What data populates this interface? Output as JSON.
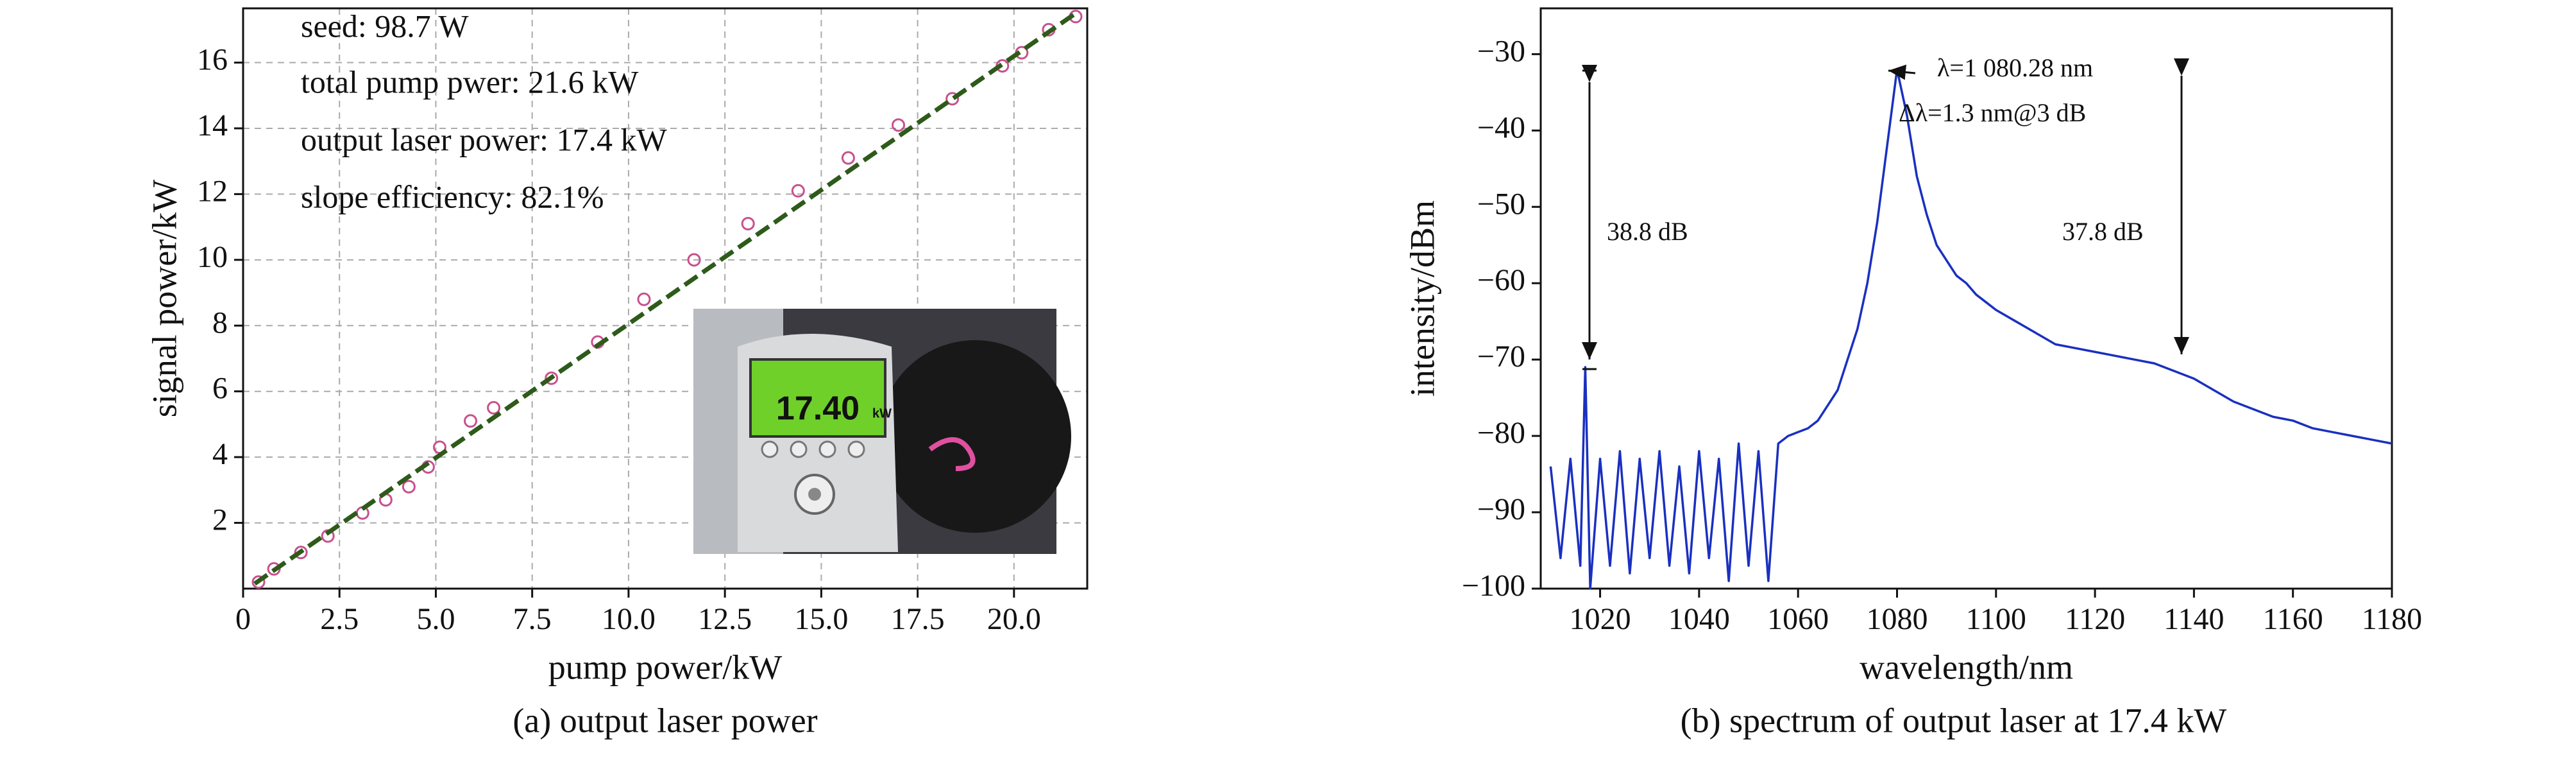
{
  "chart_data": [
    {
      "type": "scatter",
      "xlabel": "pump power/kW",
      "ylabel": "signal power/kW",
      "caption": "(a) output laser power",
      "annotations": [
        "seed: 98.7 W",
        "total pump pwer: 21.6 kW",
        "output laser power: 17.4 kW",
        "slope efficiency: 82.1%"
      ],
      "inset": {
        "display": "17.40",
        "unit": "kW"
      },
      "xlim": [
        0,
        21.9
      ],
      "ylim": [
        0,
        17.65
      ],
      "grid": true,
      "xticks": [
        0,
        2.5,
        {
          "value": 5,
          "label": "5.0"
        },
        7.5,
        {
          "value": 10,
          "label": "10.0"
        },
        12.5,
        {
          "value": 15,
          "label": "15.0"
        },
        17.5,
        {
          "value": 20,
          "label": "20.0"
        }
      ],
      "yticks": [
        2,
        4,
        6,
        8,
        10,
        12,
        14,
        16
      ],
      "series": [
        {
          "color": "#c8508c",
          "marker": "circle",
          "x": [
            0.4,
            0.8,
            1.5,
            2.2,
            3.1,
            3.7,
            4.3,
            4.8,
            5.1,
            5.9,
            6.5,
            8.0,
            9.2,
            10.4,
            11.7,
            13.1,
            14.4,
            15.7,
            17.0,
            18.4,
            19.7,
            20.2,
            20.9,
            21.6
          ],
          "values": [
            0.2,
            0.6,
            1.1,
            1.6,
            2.3,
            2.7,
            3.1,
            3.7,
            4.3,
            5.1,
            5.5,
            6.4,
            7.5,
            8.8,
            10.0,
            11.1,
            12.1,
            13.1,
            14.1,
            14.9,
            15.9,
            16.3,
            17.0,
            17.4
          ]
        },
        {
          "color": "#2e5a1a",
          "linestyle": "dashed",
          "x": [
            0.3,
            21.6
          ],
          "values": [
            0.15,
            17.5
          ]
        }
      ]
    },
    {
      "type": "line",
      "xlabel": "wavelength/nm",
      "ylabel": "intensity/dBm",
      "caption": "(b) spectrum of output laser at 17.4 kW",
      "annotations": [
        "λ=1 080.28 nm",
        "Δλ=1.3 nm@3 dB",
        "38.8 dB",
        "37.8 dB"
      ],
      "xlim": [
        1008,
        1180
      ],
      "ylim": [
        -100,
        -24
      ],
      "grid": false,
      "xticks": [
        1020,
        1040,
        1060,
        1080,
        1100,
        1120,
        1140,
        1160,
        1180
      ],
      "yticks": [
        {
          "value": -100,
          "label": "−100"
        },
        {
          "value": -90,
          "label": "−90"
        },
        {
          "value": -80,
          "label": "−80"
        },
        {
          "value": -70,
          "label": "−70"
        },
        {
          "value": -60,
          "label": "−60"
        },
        {
          "value": -50,
          "label": "−50"
        },
        {
          "value": -40,
          "label": "−40"
        },
        {
          "value": -30,
          "label": "−30"
        }
      ],
      "series": [
        {
          "color": "#1a30c0",
          "x": [
            1010,
            1012,
            1014,
            1016,
            1017,
            1018,
            1020,
            1022,
            1024,
            1026,
            1028,
            1030,
            1032,
            1034,
            1036,
            1038,
            1040,
            1042,
            1044,
            1046,
            1048,
            1050,
            1052,
            1054,
            1056,
            1058,
            1060,
            1062,
            1064,
            1066,
            1068,
            1070,
            1072,
            1074,
            1076,
            1078,
            1080,
            1082,
            1084,
            1086,
            1088,
            1090,
            1092,
            1094,
            1096,
            1098,
            1100,
            1104,
            1108,
            1112,
            1116,
            1120,
            1124,
            1128,
            1132,
            1136,
            1140,
            1144,
            1148,
            1152,
            1156,
            1160,
            1164,
            1168,
            1172,
            1176,
            1180
          ],
          "values": [
            -84,
            -96,
            -83,
            -97,
            -71,
            -100,
            -83,
            -97,
            -82,
            -98,
            -83,
            -96,
            -82,
            -97,
            -84,
            -98,
            -82,
            -96,
            -83,
            -99,
            -81,
            -97,
            -82,
            -99,
            -81,
            -80,
            -79.5,
            -79,
            -78,
            -76,
            -74,
            -70,
            -66,
            -60,
            -52,
            -42,
            -32,
            -38,
            -46,
            -51,
            -55,
            -57,
            -59,
            -60,
            -61.5,
            -62.5,
            -63.5,
            -65,
            -66.5,
            -68,
            -68.5,
            -69,
            -69.5,
            -70,
            -70.5,
            -71.5,
            -72.5,
            -74,
            -75.5,
            -76.5,
            -77.5,
            -78,
            -79,
            -79.5,
            -80,
            -80.5,
            -81
          ]
        }
      ]
    }
  ]
}
